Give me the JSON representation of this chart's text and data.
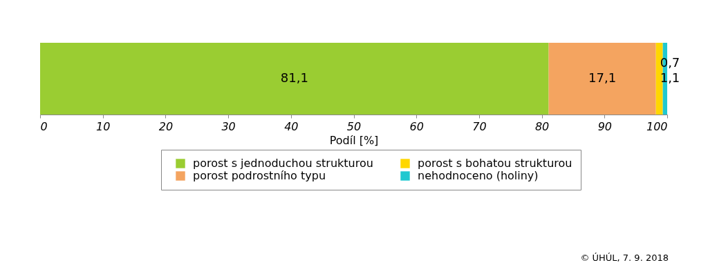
{
  "chart_data": {
    "type": "bar",
    "orientation": "horizontal",
    "stacked": true,
    "categories": [
      null
    ],
    "xlabel": "Podíl [%]",
    "xlim": [
      0,
      100
    ],
    "xticks": [
      0,
      10,
      20,
      30,
      40,
      50,
      60,
      70,
      80,
      90,
      100
    ],
    "grid": false,
    "legend": "bottom",
    "series": [
      {
        "name": "porost s jednoduchou strukturou",
        "color": "#9acd32",
        "values": [
          81.1
        ],
        "value_labels": [
          "81,1"
        ]
      },
      {
        "name": "porost podrostního typu",
        "color": "#f4a460",
        "values": [
          17.1
        ],
        "value_labels": [
          "17,1"
        ]
      },
      {
        "name": "porost s bohatou strukturou",
        "color": "#ffd700",
        "values": [
          1.1
        ],
        "value_labels": [
          "1,1"
        ]
      },
      {
        "name": "nehodnoceno (holiny)",
        "color": "#20c8d0",
        "values": [
          0.7
        ],
        "value_labels": [
          "0,7"
        ]
      }
    ],
    "annotations": [
      "© ÚHÚL, 7. 9. 2018"
    ]
  }
}
